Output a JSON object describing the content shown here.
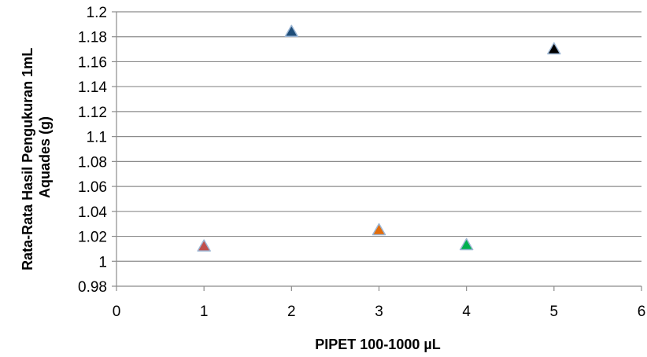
{
  "chart_data": {
    "type": "scatter",
    "title": "",
    "xlabel": "PIPET 100-1000 µL",
    "ylabel_lines": [
      "Rata-Rata Hasil Pengukuran 1mL",
      "Aquades (g)"
    ],
    "xlim": [
      0,
      6
    ],
    "ylim": [
      0.98,
      1.2
    ],
    "x_ticks": [
      0,
      1,
      2,
      3,
      4,
      5,
      6
    ],
    "y_ticks": [
      0.98,
      1,
      1.02,
      1.04,
      1.06,
      1.08,
      1.1,
      1.12,
      1.14,
      1.16,
      1.18,
      1.2
    ],
    "x_tick_labels": [
      "0",
      "1",
      "2",
      "3",
      "4",
      "5",
      "6"
    ],
    "y_tick_labels": [
      "0.98",
      "1",
      "1.02",
      "1.04",
      "1.06",
      "1.08",
      "1.1",
      "1.12",
      "1.14",
      "1.16",
      "1.18",
      "1.2"
    ],
    "grid": "horizontal",
    "marker": "triangle",
    "points": [
      {
        "x": 1,
        "y": 1.012,
        "color": "#c0504d"
      },
      {
        "x": 2,
        "y": 1.184,
        "color": "#1f4e79"
      },
      {
        "x": 3,
        "y": 1.025,
        "color": "#e36c0a"
      },
      {
        "x": 4,
        "y": 1.013,
        "color": "#00b050"
      },
      {
        "x": 5,
        "y": 1.17,
        "color": "#000000"
      }
    ]
  }
}
